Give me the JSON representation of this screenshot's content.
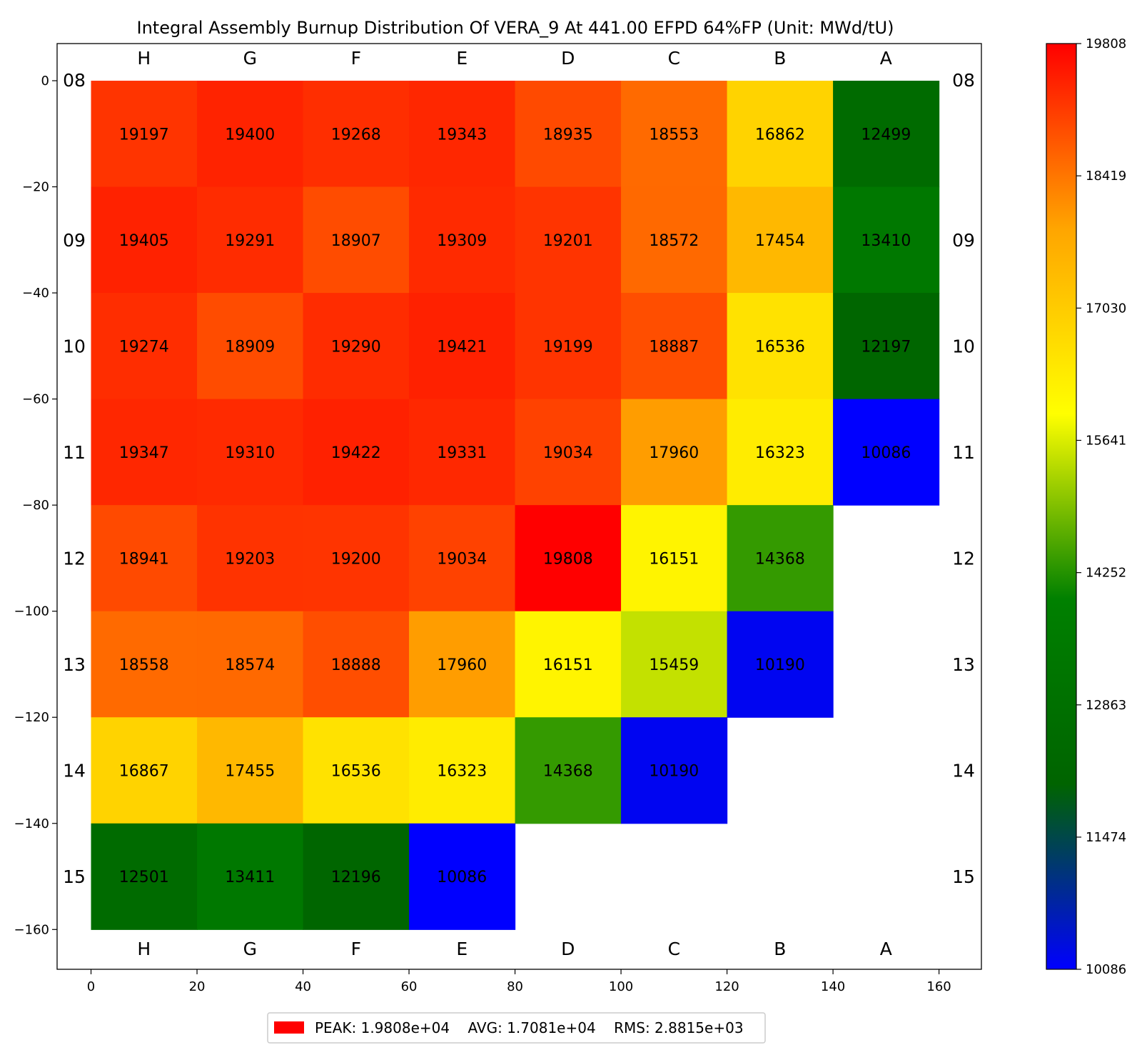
{
  "chart_data": {
    "type": "heatmap",
    "title": "Integral Assembly Burnup Distribution Of VERA_9 At 441.00 EFPD 64%FP (Unit: MWd/tU)",
    "columns": [
      "H",
      "G",
      "F",
      "E",
      "D",
      "C",
      "B",
      "A"
    ],
    "rows": [
      "08",
      "09",
      "10",
      "11",
      "12",
      "13",
      "14",
      "15"
    ],
    "values": [
      [
        19197,
        19400,
        19268,
        19343,
        18935,
        18553,
        16862,
        12499
      ],
      [
        19405,
        19291,
        18907,
        19309,
        19201,
        18572,
        17454,
        13410
      ],
      [
        19274,
        18909,
        19290,
        19421,
        19199,
        18887,
        16536,
        12197
      ],
      [
        19347,
        19310,
        19422,
        19331,
        19034,
        17960,
        16323,
        10086
      ],
      [
        18941,
        19203,
        19200,
        19034,
        19808,
        16151,
        14368,
        null
      ],
      [
        18558,
        18574,
        18888,
        17960,
        16151,
        15459,
        10190,
        null
      ],
      [
        16867,
        17455,
        16536,
        16323,
        14368,
        10190,
        null,
        null
      ],
      [
        12501,
        13411,
        12196,
        10086,
        null,
        null,
        null,
        null
      ]
    ],
    "x_axis": {
      "ticks": [
        0,
        20,
        40,
        60,
        80,
        100,
        120,
        140,
        160
      ],
      "range": [
        -6.4,
        168
      ]
    },
    "y_axis": {
      "ticks": [
        0,
        -20,
        -40,
        -60,
        -80,
        -100,
        -120,
        -140,
        -160
      ],
      "range": [
        -167.5,
        7
      ]
    },
    "colorbar": {
      "min": 10086,
      "max": 19808,
      "ticks": [
        19808,
        18419,
        17030,
        15641,
        14252,
        12863,
        11474,
        10086
      ],
      "colors": [
        "#0000ff",
        "#006400",
        "#008000",
        "#ffff00",
        "#ffa500",
        "#ff0000"
      ]
    },
    "legend": {
      "swatch_color": "#ff0000",
      "text": "PEAK: 1.9808e+04    AVG: 1.7081e+04    RMS: 2.8815e+03"
    }
  }
}
